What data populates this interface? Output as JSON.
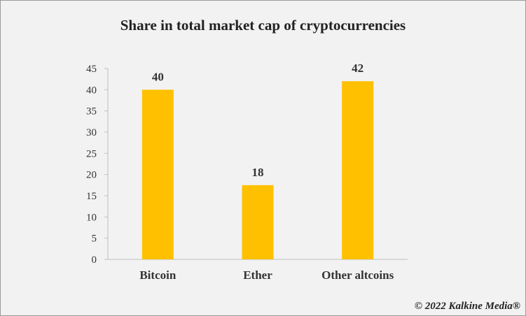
{
  "chart_data": {
    "type": "bar",
    "title": "Share in  total market cap of cryptocurrencies",
    "categories": [
      "Bitcoin",
      "Ether",
      "Other altcoins"
    ],
    "values": [
      40,
      18,
      42
    ],
    "bar_values_shown": [
      40,
      17.5,
      42
    ],
    "data_labels": [
      "40",
      "18",
      "42"
    ],
    "xlabel": "",
    "ylabel": "",
    "ylim": [
      0,
      45
    ],
    "yticks": [
      "0",
      "5",
      "10",
      "15",
      "20",
      "25",
      "30",
      "35",
      "40",
      "45"
    ],
    "grid": false,
    "legend": "none",
    "bar_color": "#FFC000"
  },
  "footer": {
    "credit": "© 2022 Kalkine Media®"
  }
}
